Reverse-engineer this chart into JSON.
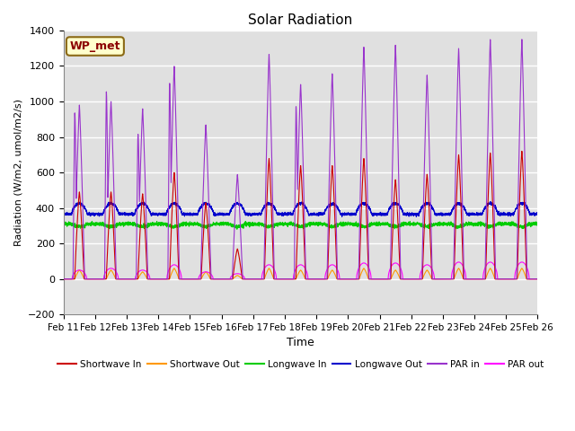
{
  "title": "Solar Radiation",
  "xlabel": "Time",
  "ylabel": "Radiation (W/m2, umol/m2/s)",
  "ylim": [
    -200,
    1400
  ],
  "background_color": "#e0e0e0",
  "grid_color": "#cccccc",
  "label_box": "WP_met",
  "x_tick_labels": [
    "Feb 11",
    "Feb 12",
    "Feb 13",
    "Feb 14",
    "Feb 15",
    "Feb 16",
    "Feb 17",
    "Feb 18",
    "Feb 19",
    "Feb 20",
    "Feb 21",
    "Feb 22",
    "Feb 23",
    "Feb 24",
    "Feb 25",
    "Feb 26"
  ],
  "series": {
    "shortwave_in": {
      "color": "#cc0000",
      "label": "Shortwave In"
    },
    "shortwave_out": {
      "color": "#ff9900",
      "label": "Shortwave Out"
    },
    "longwave_in": {
      "color": "#00cc00",
      "label": "Longwave In"
    },
    "longwave_out": {
      "color": "#0000cc",
      "label": "Longwave Out"
    },
    "par_in": {
      "color": "#9933cc",
      "label": "PAR in"
    },
    "par_out": {
      "color": "#ff00ff",
      "label": "PAR out"
    }
  },
  "yticks": [
    -200,
    0,
    200,
    400,
    600,
    800,
    1000,
    1200,
    1400
  ],
  "par_in_peaks": [
    980,
    1000,
    960,
    1200,
    870,
    590,
    1270,
    1100,
    1160,
    1310,
    1320,
    1150,
    1300,
    1350,
    1350
  ],
  "par_in_peaks2": [
    820,
    940,
    700,
    960,
    0,
    0,
    0,
    840,
    0,
    0,
    0,
    0,
    0,
    0,
    0
  ],
  "sw_in_peaks": [
    490,
    490,
    480,
    600,
    430,
    170,
    680,
    640,
    640,
    680,
    560,
    590,
    700,
    710,
    720
  ],
  "sw_out_peaks": [
    50,
    50,
    40,
    60,
    40,
    20,
    60,
    50,
    50,
    60,
    50,
    50,
    60,
    60,
    60
  ],
  "lw_in_base": 310,
  "lw_out_base": 365,
  "par_out_peaks": [
    50,
    60,
    50,
    80,
    40,
    30,
    80,
    80,
    80,
    90,
    90,
    80,
    95,
    95,
    95
  ]
}
